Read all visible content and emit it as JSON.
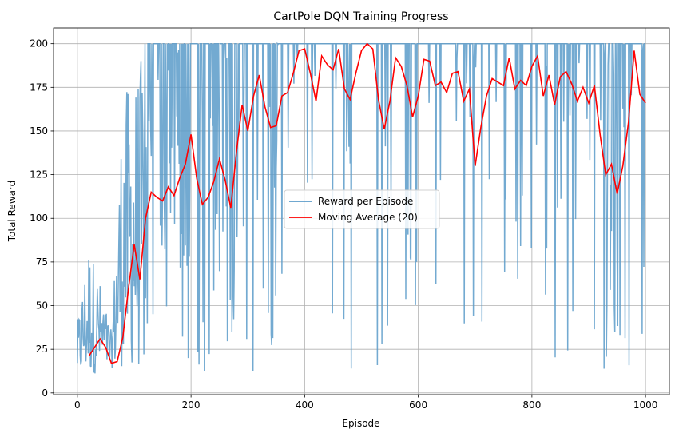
{
  "chart_data": {
    "type": "line",
    "title": "CartPole DQN Training Progress",
    "xlabel": "Episode",
    "ylabel": "Total Reward",
    "xlim": [
      -42,
      1042
    ],
    "ylim": [
      -1,
      209
    ],
    "xticks": [
      0,
      200,
      400,
      600,
      800,
      1000
    ],
    "yticks": [
      0,
      25,
      50,
      75,
      100,
      125,
      150,
      175,
      200
    ],
    "grid": true,
    "legend_position": "center",
    "colors": {
      "reward": "#5b9bc9",
      "moving_avg": "#ff0000",
      "grid": "#b0b0b0"
    },
    "series": [
      {
        "name": "Reward per Episode",
        "style": "noisy-episode-rewards",
        "summary_keypoints_x": [
          0,
          20,
          40,
          60,
          80,
          100,
          120,
          140,
          160,
          180,
          200,
          220,
          240,
          260,
          280,
          300,
          340,
          400,
          460,
          520,
          560,
          600,
          660,
          700,
          760,
          800,
          860,
          900,
          940,
          980,
          1000
        ],
        "summary_envelope_low": [
          10,
          10,
          12,
          14,
          15,
          15,
          12,
          15,
          18,
          20,
          12,
          10,
          15,
          15,
          12,
          10,
          15,
          15,
          12,
          15,
          15,
          15,
          30,
          15,
          18,
          14,
          16,
          12,
          14,
          12,
          37
        ],
        "summary_envelope_high": [
          40,
          88,
          64,
          35,
          173,
          180,
          200,
          200,
          200,
          200,
          200,
          200,
          200,
          200,
          200,
          200,
          200,
          200,
          200,
          200,
          200,
          200,
          200,
          200,
          200,
          200,
          200,
          200,
          200,
          200,
          200
        ]
      },
      {
        "name": "Moving Average (20)",
        "x": [
          20,
          30,
          40,
          50,
          60,
          70,
          80,
          90,
          100,
          110,
          120,
          130,
          140,
          150,
          160,
          170,
          180,
          190,
          200,
          210,
          220,
          230,
          240,
          250,
          260,
          270,
          280,
          290,
          300,
          310,
          320,
          330,
          340,
          350,
          360,
          370,
          380,
          390,
          400,
          410,
          420,
          430,
          440,
          450,
          460,
          470,
          480,
          490,
          500,
          510,
          520,
          530,
          540,
          550,
          560,
          570,
          580,
          590,
          600,
          610,
          620,
          630,
          640,
          650,
          660,
          670,
          680,
          690,
          700,
          710,
          720,
          730,
          740,
          750,
          760,
          770,
          780,
          790,
          800,
          810,
          820,
          830,
          840,
          850,
          860,
          870,
          880,
          890,
          900,
          910,
          920,
          930,
          940,
          950,
          960,
          970,
          980,
          990,
          1000
        ],
        "values": [
          21,
          26,
          31,
          26,
          17,
          18,
          32,
          60,
          85,
          65,
          100,
          115,
          112,
          110,
          118,
          113,
          123,
          131,
          148,
          123,
          108,
          112,
          121,
          134,
          122,
          106,
          138,
          165,
          150,
          170,
          182,
          164,
          152,
          153,
          170,
          172,
          183,
          196,
          197,
          183,
          167,
          193,
          188,
          185,
          197,
          174,
          168,
          183,
          196,
          200,
          197,
          168,
          151,
          167,
          192,
          187,
          176,
          158,
          170,
          191,
          190,
          176,
          178,
          172,
          183,
          184,
          167,
          174,
          130,
          152,
          170,
          180,
          178,
          176,
          192,
          174,
          179,
          176,
          187,
          193,
          170,
          182,
          165,
          181,
          184,
          177,
          167,
          175,
          166,
          176,
          148,
          125,
          131,
          114,
          130,
          155,
          196,
          171,
          166
        ]
      }
    ]
  }
}
